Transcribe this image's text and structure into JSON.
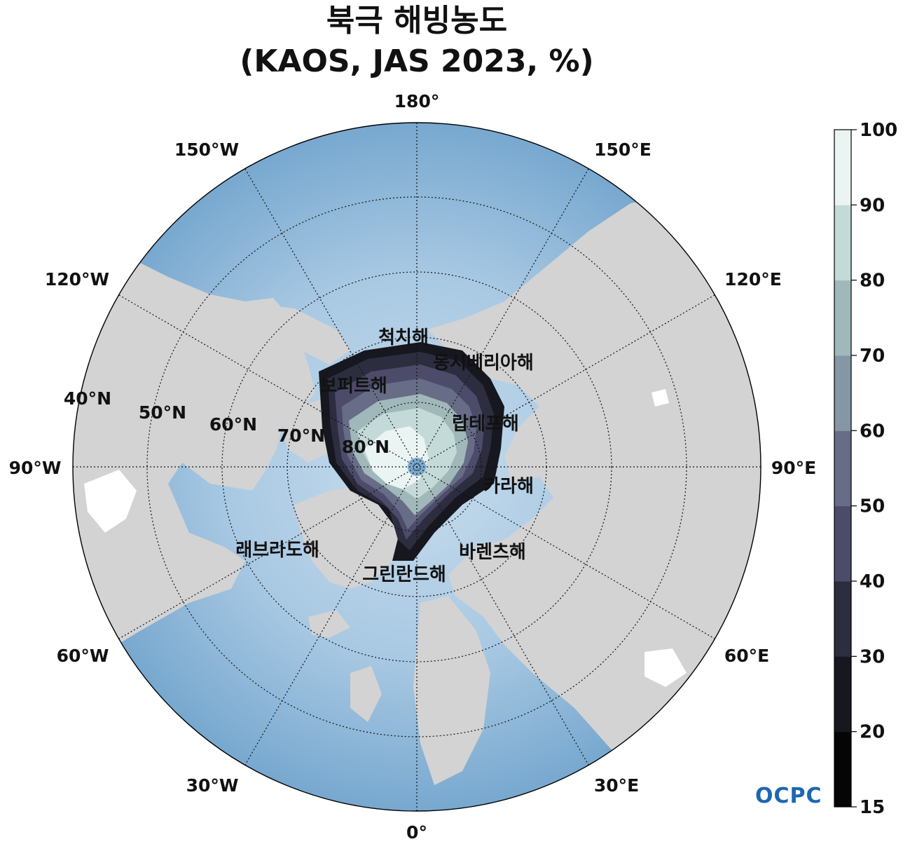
{
  "title": {
    "line1": "북극 해빙농도",
    "line2": "(KAOS, JAS 2023, %)"
  },
  "meridian_labels": [
    {
      "id": "lon-180",
      "text": "180°"
    },
    {
      "id": "lon-150e",
      "text": "150°E"
    },
    {
      "id": "lon-120e",
      "text": "120°E"
    },
    {
      "id": "lon-90e",
      "text": "90°E"
    },
    {
      "id": "lon-60e",
      "text": "60°E"
    },
    {
      "id": "lon-30e",
      "text": "30°E"
    },
    {
      "id": "lon-0",
      "text": "0°"
    },
    {
      "id": "lon-30w",
      "text": "30°W"
    },
    {
      "id": "lon-60w",
      "text": "60°W"
    },
    {
      "id": "lon-90w",
      "text": "90°W"
    },
    {
      "id": "lon-120w",
      "text": "120°W"
    },
    {
      "id": "lon-150w",
      "text": "150°W"
    }
  ],
  "parallel_labels": [
    {
      "id": "lat-40",
      "text": "40°N"
    },
    {
      "id": "lat-50",
      "text": "50°N"
    },
    {
      "id": "lat-60",
      "text": "60°N"
    },
    {
      "id": "lat-70",
      "text": "70°N"
    },
    {
      "id": "lat-80",
      "text": "80°N"
    }
  ],
  "sea_labels": [
    {
      "id": "chukchi",
      "text": "척치해"
    },
    {
      "id": "east-siberian",
      "text": "동시베리아해"
    },
    {
      "id": "beaufort",
      "text": "보퍼트해"
    },
    {
      "id": "laptev",
      "text": "랍테프해"
    },
    {
      "id": "kara",
      "text": "카라해"
    },
    {
      "id": "labrador",
      "text": "래브라도해"
    },
    {
      "id": "barents",
      "text": "바렌츠해"
    },
    {
      "id": "greenland",
      "text": "그린란드해"
    }
  ],
  "colorbar": {
    "ticks": [
      "15",
      "20",
      "30",
      "40",
      "50",
      "60",
      "70",
      "80",
      "90",
      "100"
    ],
    "colors": [
      "#050505",
      "#17171f",
      "#2d2d40",
      "#4c4c6a",
      "#676d86",
      "#8596a4",
      "#a0b8b9",
      "#c4dad8",
      "#eaf4f2"
    ]
  },
  "colors": {
    "ocean": "#7aa9ce",
    "shelf": "#c7dcec",
    "land": "#d3d3d3",
    "pole_hole": "#7aa9ce"
  },
  "logo": "OCPC"
}
